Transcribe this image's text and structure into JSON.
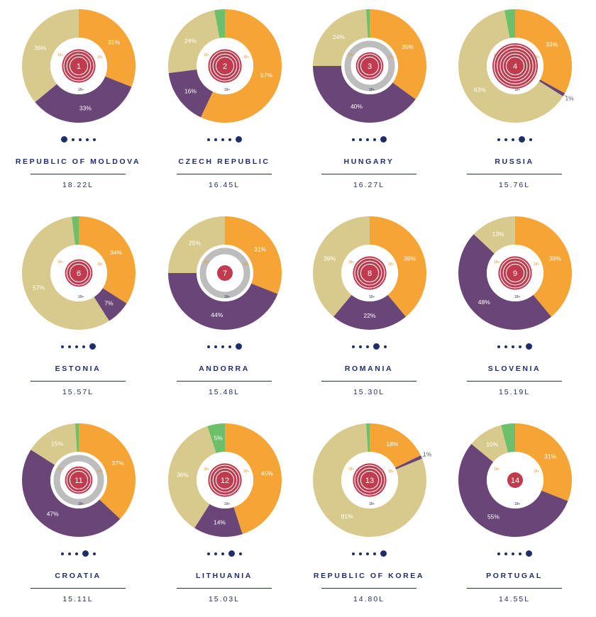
{
  "colors": {
    "beer": "#f5a535",
    "spirits": "#6a4578",
    "wine": "#d8ca8c",
    "other": "#6cc06a",
    "rank_center": "#c13a4d",
    "inner_ring": "#bdbdbd",
    "text": "#1f2d6b"
  },
  "chart_data": [
    {
      "type": "pie",
      "rank": "1",
      "country": "REPUBLIC OF MOLDOVA",
      "liters": "18.22L",
      "active_dot": 0,
      "slices": [
        {
          "category": "beer",
          "value": 31,
          "label": "31%"
        },
        {
          "category": "spirits",
          "value": 33,
          "label": "33%"
        },
        {
          "category": "wine",
          "value": 36,
          "label": "36%"
        }
      ],
      "inner_labels": [
        "15+",
        "16+",
        "18+"
      ],
      "center_rings": 4,
      "inner_ring": false
    },
    {
      "type": "pie",
      "rank": "2",
      "country": "CZECH REPUBLIC",
      "liters": "16.45L",
      "active_dot": 4,
      "slices": [
        {
          "category": "beer",
          "value": 57,
          "label": "57%"
        },
        {
          "category": "spirits",
          "value": 16,
          "label": "16%"
        },
        {
          "category": "wine",
          "value": 24,
          "label": "24%"
        },
        {
          "category": "other",
          "value": 3,
          "label": ""
        }
      ],
      "inner_labels": [
        "18+",
        "18+",
        "18+"
      ],
      "center_rings": 4,
      "inner_ring": false
    },
    {
      "type": "pie",
      "rank": "3",
      "country": "HUNGARY",
      "liters": "16.27L",
      "active_dot": 4,
      "slices": [
        {
          "category": "beer",
          "value": 35,
          "label": "35%"
        },
        {
          "category": "spirits",
          "value": 40,
          "label": "40%"
        },
        {
          "category": "wine",
          "value": 24,
          "label": "24%"
        },
        {
          "category": "other",
          "value": 1,
          "label": ""
        }
      ],
      "inner_labels": [
        "18+",
        "18+",
        "18+"
      ],
      "center_rings": 3,
      "inner_ring": true
    },
    {
      "type": "pie",
      "rank": "4",
      "country": "RUSSIA",
      "liters": "15.76L",
      "active_dot": 3,
      "slices": [
        {
          "category": "beer",
          "value": 33,
          "label": "33%"
        },
        {
          "category": "spirits",
          "value": 1,
          "label": "1%"
        },
        {
          "category": "wine",
          "value": 63,
          "label": "63%"
        },
        {
          "category": "other",
          "value": 3,
          "label": ""
        }
      ],
      "inner_labels": [
        "18+",
        "18+",
        "18+"
      ],
      "center_rings": 6,
      "inner_ring": false
    },
    {
      "type": "pie",
      "rank": "6",
      "country": "ESTONIA",
      "liters": "15.57L",
      "active_dot": 4,
      "slices": [
        {
          "category": "beer",
          "value": 34,
          "label": "34%"
        },
        {
          "category": "spirits",
          "value": 7,
          "label": "7%"
        },
        {
          "category": "wine",
          "value": 57,
          "label": "57%"
        },
        {
          "category": "other",
          "value": 2,
          "label": ""
        }
      ],
      "inner_labels": [
        "18+",
        "18+",
        "18+"
      ],
      "center_rings": 3,
      "inner_ring": false
    },
    {
      "type": "pie",
      "rank": "7",
      "country": "ANDORRA",
      "liters": "15.48L",
      "active_dot": 4,
      "slices": [
        {
          "category": "beer",
          "value": 31,
          "label": "31%"
        },
        {
          "category": "spirits",
          "value": 44,
          "label": "44%"
        },
        {
          "category": "wine",
          "value": 25,
          "label": "25%"
        }
      ],
      "inner_labels": [
        "18+",
        "18+",
        "18+"
      ],
      "center_rings": 1,
      "inner_ring": true
    },
    {
      "type": "pie",
      "rank": "8",
      "country": "ROMANIA",
      "liters": "15.30L",
      "active_dot": 3,
      "slices": [
        {
          "category": "beer",
          "value": 39,
          "label": "39%"
        },
        {
          "category": "spirits",
          "value": 22,
          "label": "22%"
        },
        {
          "category": "wine",
          "value": 39,
          "label": "39%"
        }
      ],
      "inner_labels": [
        "18+",
        "18+",
        "18+"
      ],
      "center_rings": 4,
      "inner_ring": false
    },
    {
      "type": "pie",
      "rank": "9",
      "country": "SLOVENIA",
      "liters": "15.19L",
      "active_dot": 4,
      "slices": [
        {
          "category": "beer",
          "value": 39,
          "label": "39%"
        },
        {
          "category": "spirits",
          "value": 48,
          "label": "48%"
        },
        {
          "category": "wine",
          "value": 13,
          "label": "13%"
        }
      ],
      "inner_labels": [
        "18+",
        "18+",
        "18+"
      ],
      "center_rings": 4,
      "inner_ring": false
    },
    {
      "type": "pie",
      "rank": "11",
      "country": "CROATIA",
      "liters": "15.11L",
      "active_dot": 3,
      "slices": [
        {
          "category": "beer",
          "value": 37,
          "label": "37%"
        },
        {
          "category": "spirits",
          "value": 47,
          "label": "47%"
        },
        {
          "category": "wine",
          "value": 15,
          "label": "15%"
        },
        {
          "category": "other",
          "value": 1,
          "label": ""
        }
      ],
      "inner_labels": [
        "18+",
        "18+",
        "18+"
      ],
      "center_rings": 3,
      "inner_ring": true
    },
    {
      "type": "pie",
      "rank": "12",
      "country": "LITHUANIA",
      "liters": "15.03L",
      "active_dot": 3,
      "slices": [
        {
          "category": "beer",
          "value": 45,
          "label": "45%"
        },
        {
          "category": "spirits",
          "value": 14,
          "label": "14%"
        },
        {
          "category": "wine",
          "value": 36,
          "label": "36%"
        },
        {
          "category": "other",
          "value": 5,
          "label": "5%"
        }
      ],
      "inner_labels": [
        "18+",
        "18+",
        "18+"
      ],
      "center_rings": 4,
      "inner_ring": false
    },
    {
      "type": "pie",
      "rank": "13",
      "country": "REPUBLIC OF KOREA",
      "liters": "14.80L",
      "active_dot": 4,
      "slices": [
        {
          "category": "beer",
          "value": 18,
          "label": "18%"
        },
        {
          "category": "spirits",
          "value": 1,
          "label": "1%"
        },
        {
          "category": "wine",
          "value": 81,
          "label": "81%"
        },
        {
          "category": "other",
          "value": 1,
          "label": ""
        }
      ],
      "inner_labels": [
        "18+",
        "18+",
        "18+"
      ],
      "center_rings": 4,
      "inner_ring": false
    },
    {
      "type": "pie",
      "rank": "14",
      "country": "PORTUGAL",
      "liters": "14.55L",
      "active_dot": 4,
      "slices": [
        {
          "category": "beer",
          "value": 31,
          "label": "31%"
        },
        {
          "category": "spirits",
          "value": 55,
          "label": "55%"
        },
        {
          "category": "wine",
          "value": 10,
          "label": "10%"
        },
        {
          "category": "other",
          "value": 4,
          "label": ""
        }
      ],
      "inner_labels": [
        "18+",
        "18+",
        "18+"
      ],
      "center_rings": 1,
      "inner_ring": false
    }
  ]
}
